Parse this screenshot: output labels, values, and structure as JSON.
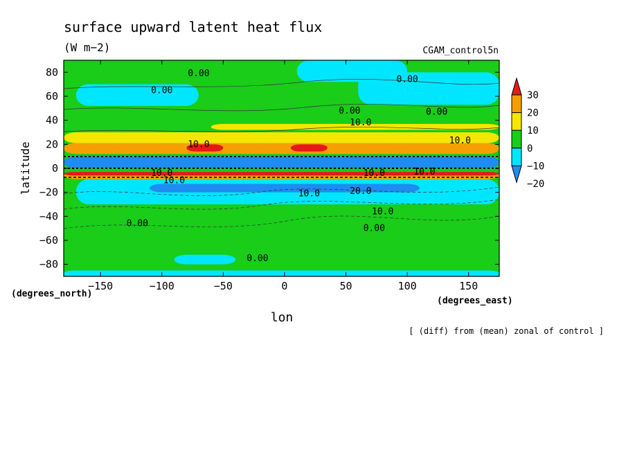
{
  "chart_data": {
    "type": "heatmap",
    "title": "surface upward latent heat flux",
    "units": "(W m−2)",
    "run_label": "CGAM_control5n",
    "xlabel": "lon",
    "ylabel": "latitude",
    "x_unit_label": "(degrees_east)",
    "y_unit_label": "(degrees_north)",
    "footnote": "[ (diff) from (mean) zonal of control ]",
    "xlim": [
      -180,
      175
    ],
    "ylim": [
      -90,
      90
    ],
    "x_ticks": [
      -150,
      -100,
      -50,
      0,
      50,
      100,
      150
    ],
    "y_ticks": [
      -80,
      -60,
      -40,
      -20,
      0,
      20,
      40,
      60,
      80
    ],
    "x_tick_labels": [
      "−150",
      "−100",
      "−50",
      "0",
      "50",
      "100",
      "150"
    ],
    "y_tick_labels": [
      "−80",
      "−60",
      "−40",
      "−20",
      "0",
      "20",
      "40",
      "60",
      "80"
    ],
    "colorbar": {
      "levels": [
        -20,
        -10,
        0,
        10,
        20,
        30
      ],
      "labels": [
        "−20",
        "−10",
        "0",
        "10",
        "20",
        "30"
      ],
      "colors": [
        "#1e8cf0",
        "#00e6ff",
        "#19cd19",
        "#f5e600",
        "#f5a000",
        "#e61919"
      ]
    },
    "fills": [
      {
        "band": "cyan",
        "lon": [
          -180,
          175
        ],
        "lat": [
          -90,
          -85
        ]
      },
      {
        "band": "green",
        "lon": [
          -180,
          175
        ],
        "lat": [
          -85,
          -30
        ]
      },
      {
        "band": "cyan",
        "lon": [
          -170,
          175
        ],
        "lat": [
          -30,
          -9
        ]
      },
      {
        "band": "blue",
        "lon": [
          -110,
          110
        ],
        "lat": [
          -20,
          -13
        ]
      },
      {
        "band": "orange",
        "lon": [
          -180,
          175
        ],
        "lat": [
          -9,
          -3
        ]
      },
      {
        "band": "red",
        "lon": [
          -180,
          175
        ],
        "lat": [
          -6,
          -3
        ]
      },
      {
        "band": "blue",
        "lon": [
          -180,
          175
        ],
        "lat": [
          0,
          10
        ]
      },
      {
        "band": "orange",
        "lon": [
          -180,
          175
        ],
        "lat": [
          12,
          21
        ]
      },
      {
        "band": "red",
        "lon": [
          5,
          35
        ],
        "lat": [
          14,
          20
        ]
      },
      {
        "band": "red",
        "lon": [
          -80,
          -50
        ],
        "lat": [
          14,
          20
        ]
      },
      {
        "band": "yellow",
        "lon": [
          -180,
          175
        ],
        "lat": [
          21,
          30
        ]
      },
      {
        "band": "yellow",
        "lon": [
          -60,
          175
        ],
        "lat": [
          32,
          37
        ]
      },
      {
        "band": "cyan",
        "lon": [
          -170,
          -70
        ],
        "lat": [
          52,
          70
        ]
      },
      {
        "band": "cyan",
        "lon": [
          60,
          175
        ],
        "lat": [
          53,
          80
        ]
      },
      {
        "band": "cyan",
        "lon": [
          10,
          100
        ],
        "lat": [
          72,
          90
        ]
      },
      {
        "band": "cyan",
        "lon": [
          -90,
          -40
        ],
        "lat": [
          -80,
          -72
        ]
      },
      {
        "band": "cyan",
        "lon": [
          -180,
          175
        ],
        "lat": [
          -90,
          -88
        ]
      }
    ],
    "contour_labels": [
      {
        "text": "0.00",
        "lon": -70,
        "lat": 79
      },
      {
        "text": "0.00",
        "lon": 100,
        "lat": 74
      },
      {
        "text": "0.00",
        "lon": -100,
        "lat": 65
      },
      {
        "text": "0.00",
        "lon": 53,
        "lat": 48
      },
      {
        "text": "0.00",
        "lon": 124,
        "lat": 47
      },
      {
        "text": "10.0",
        "lon": 62,
        "lat": 38
      },
      {
        "text": "10.0",
        "lon": 143,
        "lat": 23
      },
      {
        "text": "10.0",
        "lon": -70,
        "lat": 20
      },
      {
        "text": "10.0",
        "lon": -100,
        "lat": -4
      },
      {
        "text": "10.0",
        "lon": 114,
        "lat": -3
      },
      {
        "text": "10.0",
        "lon": 73,
        "lat": -4
      },
      {
        "text": "10.0",
        "lon": -90,
        "lat": -10
      },
      {
        "text": "10.0",
        "lon": 20,
        "lat": -21
      },
      {
        "text": "20.0",
        "lon": 62,
        "lat": -19
      },
      {
        "text": "10.0",
        "lon": 80,
        "lat": -36
      },
      {
        "text": "0.00",
        "lon": -120,
        "lat": -46
      },
      {
        "text": "0.00",
        "lon": 73,
        "lat": -50
      },
      {
        "text": "0.00",
        "lon": -22,
        "lat": -75
      }
    ]
  }
}
